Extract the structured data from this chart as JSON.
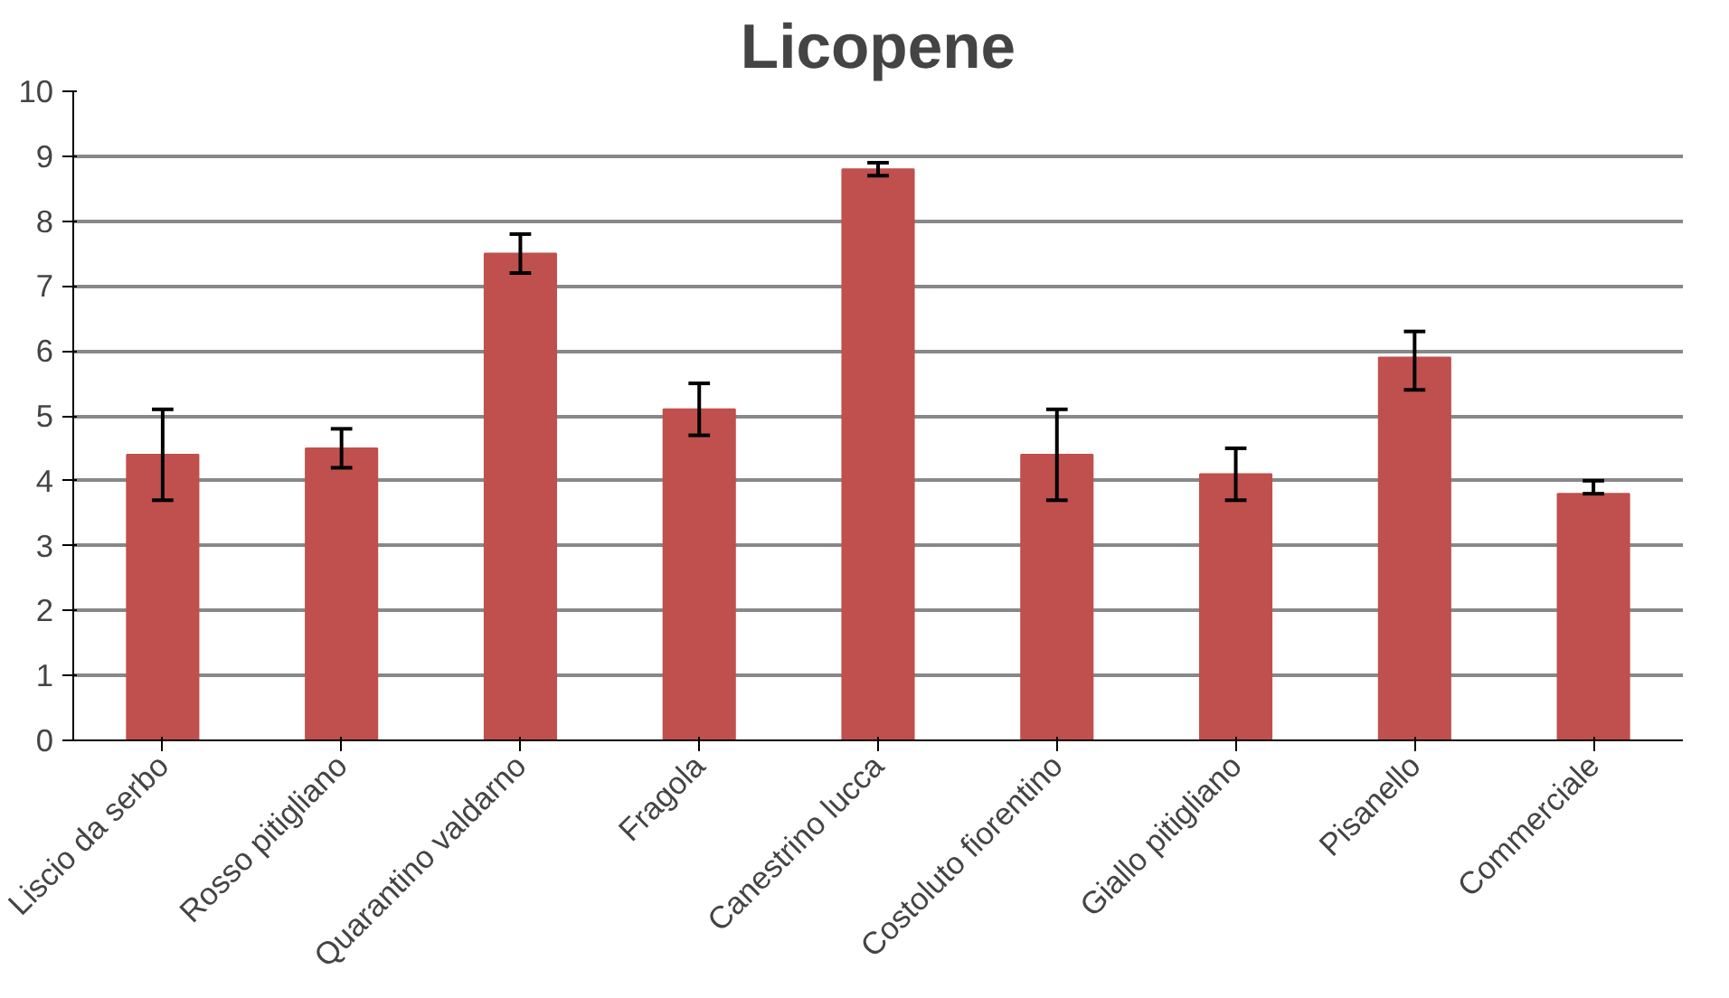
{
  "chart_data": {
    "type": "bar",
    "title": "Licopene",
    "categories": [
      "Liscio da serbo",
      "Rosso pitigliano",
      "Quarantino valdarno",
      "Fragola",
      "Canestrino lucca",
      "Costoluto fiorentino",
      "Giallo pitigliano",
      "Pisanello",
      "Commerciale"
    ],
    "values": [
      4.4,
      4.5,
      7.5,
      5.1,
      8.8,
      4.4,
      4.1,
      5.9,
      3.8
    ],
    "errors": [
      [
        3.7,
        5.1
      ],
      [
        4.2,
        4.8
      ],
      [
        7.2,
        7.8
      ],
      [
        4.7,
        5.5
      ],
      [
        8.7,
        8.9
      ],
      [
        3.7,
        5.1
      ],
      [
        3.7,
        4.5
      ],
      [
        5.4,
        6.3
      ],
      [
        3.8,
        4.0
      ]
    ],
    "color": "#c0504d",
    "ylim": [
      0,
      10
    ],
    "yticks": [
      0,
      1,
      2,
      3,
      4,
      5,
      6,
      7,
      8,
      9,
      10
    ],
    "grid": "y"
  }
}
